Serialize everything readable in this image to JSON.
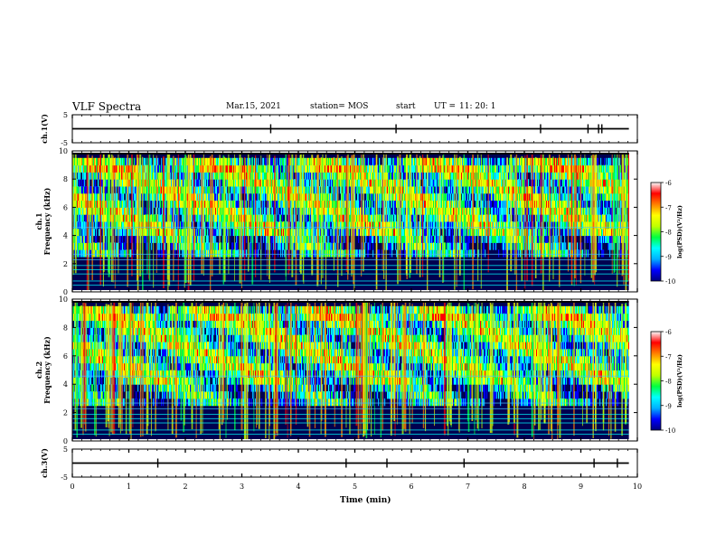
{
  "header": {
    "title": "VLF Spectra",
    "date": "Mar.15, 2021",
    "station": "station= MOS",
    "start_label": "start",
    "ut_label": "UT =",
    "start_time": "11: 20: 1"
  },
  "colors": {
    "colormap": [
      "#000080",
      "#0000ff",
      "#00b0ff",
      "#00ffff",
      "#00ff40",
      "#c0ff00",
      "#ffff00",
      "#ff8000",
      "#ff0000",
      "#ffffff"
    ],
    "trace": "#000000"
  },
  "chart_data": [
    {
      "id": "ch1-voltage",
      "type": "line",
      "ylabel": "ch.1(V)",
      "ylim": [
        -5,
        5
      ],
      "yticks": [
        5,
        -5
      ],
      "xlim": [
        0,
        10
      ],
      "series": [
        {
          "x": [
            0,
            9.85
          ],
          "y": [
            0,
            0
          ]
        }
      ]
    },
    {
      "id": "ch1-spectrogram",
      "type": "heatmap",
      "ylabel_line1": "ch.1",
      "ylabel_line2": "Frequency (kHz)",
      "ylim": [
        0,
        10
      ],
      "yticks": [
        0,
        2,
        4,
        6,
        8,
        10
      ],
      "xlim": [
        0,
        10
      ],
      "data_end_min": 9.85,
      "colorbar": {
        "label": "log(PSD)(V²/Hz)",
        "range": [
          -10,
          -6
        ],
        "ticks": [
          -6,
          -7,
          -8,
          -9,
          -10
        ]
      }
    },
    {
      "id": "ch2-spectrogram",
      "type": "heatmap",
      "ylabel_line1": "ch.2",
      "ylabel_line2": "Frequency (kHz)",
      "ylim": [
        0,
        10
      ],
      "yticks": [
        0,
        2,
        4,
        6,
        8,
        10
      ],
      "xlim": [
        0,
        10
      ],
      "data_end_min": 9.85,
      "colorbar": {
        "label": "log(PSD)(V²/Hz)",
        "range": [
          -10,
          -6
        ],
        "ticks": [
          -6,
          -7,
          -8,
          -9,
          -10
        ]
      }
    },
    {
      "id": "ch3-voltage",
      "type": "line",
      "ylabel": "ch.3(V)",
      "ylim": [
        -5,
        5
      ],
      "yticks": [
        5,
        -5
      ],
      "xlim": [
        0,
        10
      ],
      "xlabel": "Time (min)",
      "xticks": [
        0,
        1,
        2,
        3,
        4,
        5,
        6,
        7,
        8,
        9,
        10
      ],
      "series": [
        {
          "x": [
            0,
            9.85
          ],
          "y": [
            0,
            0
          ]
        }
      ]
    }
  ]
}
